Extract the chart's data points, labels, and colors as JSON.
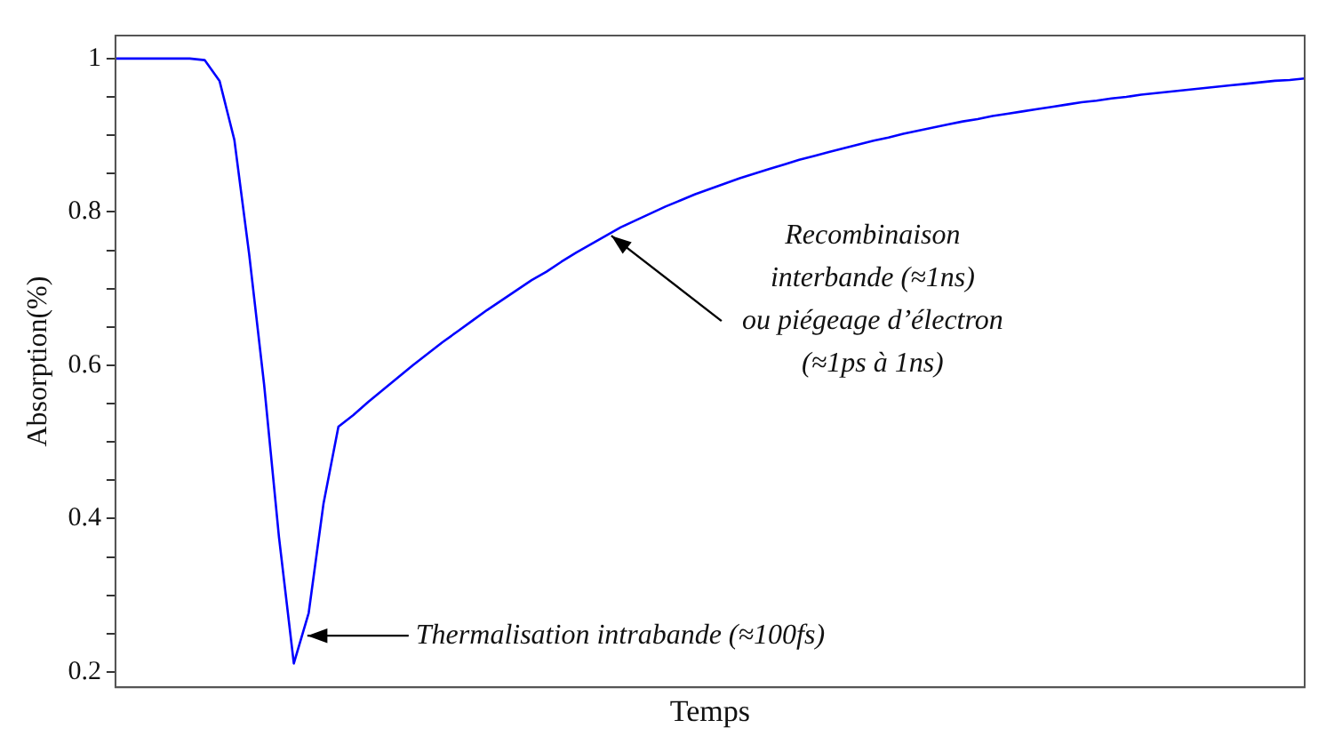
{
  "chart_data": {
    "type": "line",
    "xlabel": "Temps",
    "ylabel": "Absorption(%)",
    "categories": [
      null,
      null,
      null,
      null,
      null,
      null,
      null,
      null,
      null,
      null,
      null,
      null,
      null,
      null,
      null,
      null,
      null,
      null,
      null,
      null,
      null,
      null,
      null,
      null,
      null,
      null,
      null,
      null,
      null,
      null,
      null,
      null,
      null,
      null,
      null,
      null,
      null,
      null,
      null,
      null,
      null,
      null,
      null,
      null,
      null,
      null,
      null,
      null,
      null,
      null,
      null,
      null,
      null,
      null,
      null,
      null,
      null,
      null,
      null,
      null,
      null,
      null,
      null,
      null,
      null,
      null,
      null,
      null,
      null,
      null,
      null,
      null,
      null,
      null,
      null,
      null,
      null,
      null,
      null,
      null,
      null
    ],
    "series": [
      {
        "color": "#0000ff",
        "values": [
          1,
          1,
          1,
          1,
          1,
          1,
          0.998,
          0.971,
          0.894,
          0.744,
          0.575,
          0.376,
          0.211,
          0.277,
          0.42,
          0.52,
          0.535,
          0.552,
          0.568,
          0.584,
          0.6,
          0.615,
          0.63,
          0.644,
          0.658,
          0.672,
          0.685,
          0.698,
          0.711,
          0.722,
          0.735,
          0.747,
          0.758,
          0.769,
          0.78,
          0.789,
          0.798,
          0.807,
          0.815,
          0.823,
          0.83,
          0.837,
          0.844,
          0.85,
          0.856,
          0.862,
          0.868,
          0.873,
          0.878,
          0.883,
          0.888,
          0.893,
          0.897,
          0.902,
          0.906,
          0.91,
          0.914,
          0.918,
          0.921,
          0.925,
          0.928,
          0.931,
          0.934,
          0.937,
          0.94,
          0.943,
          0.945,
          0.948,
          0.95,
          0.953,
          0.955,
          0.957,
          0.959,
          0.961,
          0.963,
          0.965,
          0.967,
          0.969,
          0.971,
          0.972,
          0.974
        ]
      }
    ],
    "ylim": [
      0.18,
      1.03
    ],
    "yticks": [
      0.2,
      {
        "value": 0.25,
        "label": null
      },
      {
        "value": 0.3,
        "label": null
      },
      {
        "value": 0.35,
        "label": null
      },
      0.4,
      {
        "value": 0.45,
        "label": null
      },
      {
        "value": 0.5,
        "label": null
      },
      {
        "value": 0.55,
        "label": null
      },
      0.6,
      {
        "value": 0.65,
        "label": null
      },
      {
        "value": 0.7,
        "label": null
      },
      {
        "value": 0.75,
        "label": null
      },
      0.8,
      {
        "value": 0.85,
        "label": null
      },
      {
        "value": 0.9,
        "label": null
      },
      {
        "value": 0.95,
        "label": null
      },
      {
        "value": 1,
        "label": "1"
      }
    ],
    "tick_labels": "y",
    "grid": false,
    "legend": false,
    "marker": "none",
    "line_style": "solid",
    "annotations": [
      "Thermalisation intrabande (≈100fs)",
      "Recombinaison interbande (≈1ns) ou piégeage d’électron (≈1ps à 1ns)"
    ]
  }
}
